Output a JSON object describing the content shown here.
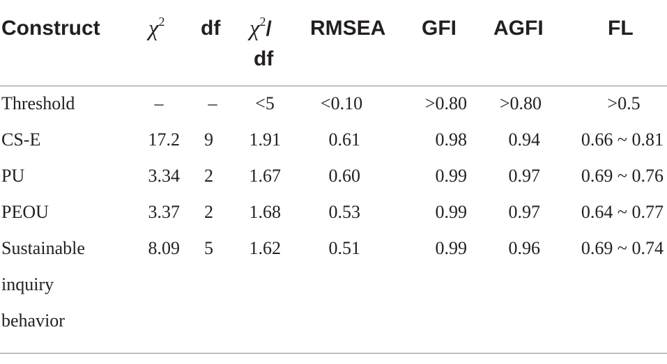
{
  "header": {
    "construct": "Construct",
    "chi2_base": "χ",
    "chi2_sup": "2",
    "df": "df",
    "chi2df_base": "χ",
    "chi2df_sup": "2",
    "chi2df_slash": "/",
    "chi2df_df": "df",
    "rmsea": "RMSEA",
    "gfi": "GFI",
    "agfi": "AGFI",
    "fl": "FL"
  },
  "rows": [
    {
      "construct": "Threshold",
      "chi2": "–",
      "df": "–",
      "chi2df": "<5",
      "rmsea": "<0.10",
      "gfi": ">0.80",
      "agfi": ">0.80",
      "fl": ">0.5"
    },
    {
      "construct": "CS-E",
      "chi2": "17.2",
      "df": "9",
      "chi2df": "1.91",
      "rmsea": "0.61",
      "gfi": "0.98",
      "agfi": "0.94",
      "fl": "0.66 ~ 0.81"
    },
    {
      "construct": "PU",
      "chi2": "3.34",
      "df": "2",
      "chi2df": "1.67",
      "rmsea": "0.60",
      "gfi": "0.99",
      "agfi": "0.97",
      "fl": "0.69 ~ 0.76"
    },
    {
      "construct": "PEOU",
      "chi2": "3.37",
      "df": "2",
      "chi2df": "1.68",
      "rmsea": "0.53",
      "gfi": "0.99",
      "agfi": "0.97",
      "fl": "0.64 ~ 0.77"
    },
    {
      "construct_lines": [
        "Sustainable",
        "inquiry",
        "behavior"
      ],
      "chi2": "8.09",
      "df": "5",
      "chi2df": "1.62",
      "rmsea": "0.51",
      "gfi": "0.99",
      "agfi": "0.96",
      "fl": "0.69 ~ 0.74"
    }
  ]
}
